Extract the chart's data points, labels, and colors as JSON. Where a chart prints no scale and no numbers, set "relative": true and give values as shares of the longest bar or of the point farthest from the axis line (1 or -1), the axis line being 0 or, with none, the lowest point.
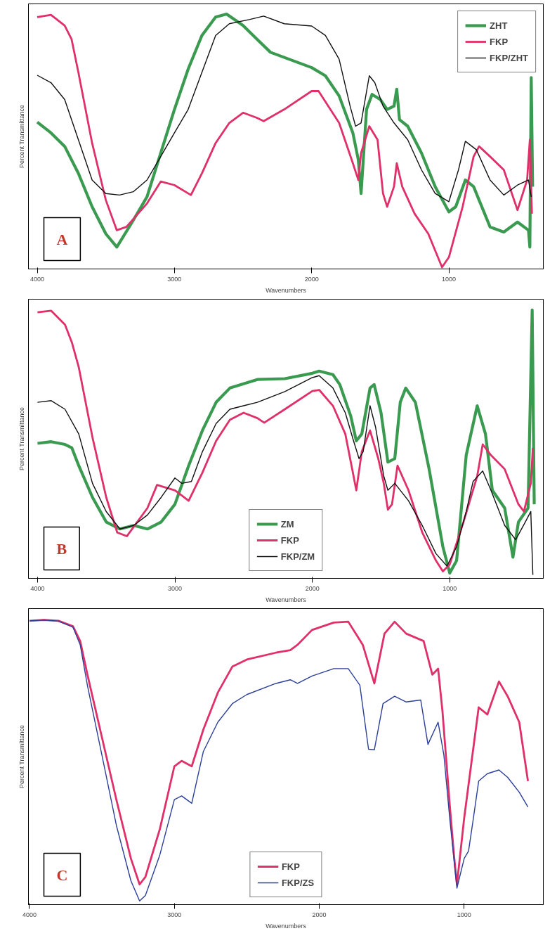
{
  "chart_data": [
    {
      "type": "line",
      "relative": true,
      "xlabel": "Wavenumbers",
      "ylabel": "Percent Transmittance",
      "xlim": [
        4064,
        312
      ],
      "xticks": [
        4000,
        3000,
        2000,
        1000
      ],
      "tick_labels": "x",
      "grid": false,
      "legend": "top right",
      "line_style": "solid",
      "marker": "none",
      "annotations": [
        "A"
      ],
      "series": [
        {
          "name": "ZHT",
          "color": "#3a9a50",
          "x": [
            4000,
            3900,
            3800,
            3700,
            3600,
            3500,
            3420,
            3300,
            3200,
            3100,
            3000,
            2900,
            2800,
            2700,
            2620,
            2500,
            2400,
            2300,
            2200,
            2000,
            1900,
            1800,
            1700,
            1660,
            1640,
            1600,
            1560,
            1500,
            1450,
            1400,
            1380,
            1360,
            1300,
            1200,
            1100,
            1000,
            950,
            880,
            820,
            700,
            600,
            500,
            420,
            410,
            400,
            390
          ],
          "values": [
            0.576,
            0.534,
            0.481,
            0.375,
            0.244,
            0.138,
            0.086,
            0.191,
            0.283,
            0.455,
            0.626,
            0.784,
            0.916,
            0.988,
            1.0,
            0.955,
            0.902,
            0.85,
            0.83,
            0.79,
            0.758,
            0.679,
            0.534,
            0.428,
            0.296,
            0.626,
            0.685,
            0.665,
            0.626,
            0.639,
            0.705,
            0.586,
            0.56,
            0.455,
            0.323,
            0.224,
            0.244,
            0.349,
            0.323,
            0.165,
            0.145,
            0.184,
            0.152,
            0.086,
            0.751,
            0.323
          ]
        },
        {
          "name": "FKP",
          "color": "#e0306a",
          "x": [
            4000,
            3900,
            3800,
            3750,
            3700,
            3600,
            3500,
            3420,
            3350,
            3200,
            3100,
            3000,
            2880,
            2800,
            2700,
            2600,
            2500,
            2400,
            2350,
            2200,
            2000,
            1950,
            1800,
            1700,
            1660,
            1640,
            1580,
            1520,
            1480,
            1450,
            1400,
            1380,
            1340,
            1250,
            1150,
            1080,
            1050,
            1000,
            900,
            820,
            780,
            700,
            600,
            500,
            430,
            410,
            395
          ],
          "values": [
            0.988,
            0.997,
            0.955,
            0.902,
            0.771,
            0.494,
            0.27,
            0.152,
            0.165,
            0.257,
            0.343,
            0.329,
            0.29,
            0.375,
            0.494,
            0.573,
            0.613,
            0.593,
            0.58,
            0.626,
            0.698,
            0.698,
            0.573,
            0.415,
            0.349,
            0.455,
            0.56,
            0.507,
            0.296,
            0.244,
            0.323,
            0.415,
            0.323,
            0.217,
            0.138,
            0.046,
            0.007,
            0.046,
            0.244,
            0.441,
            0.481,
            0.441,
            0.389,
            0.231,
            0.349,
            0.507,
            0.217
          ]
        },
        {
          "name": "FKP/ZHT",
          "color": "#111111",
          "x": [
            4000,
            3900,
            3800,
            3700,
            3600,
            3500,
            3400,
            3300,
            3200,
            3100,
            3000,
            2900,
            2800,
            2700,
            2600,
            2450,
            2350,
            2200,
            2000,
            1900,
            1800,
            1720,
            1680,
            1640,
            1580,
            1540,
            1480,
            1400,
            1300,
            1200,
            1100,
            1000,
            930,
            880,
            800,
            700,
            600,
            500,
            420,
            400
          ],
          "values": [
            0.76,
            0.731,
            0.665,
            0.507,
            0.349,
            0.296,
            0.29,
            0.303,
            0.349,
            0.441,
            0.534,
            0.626,
            0.771,
            0.916,
            0.962,
            0.979,
            0.992,
            0.962,
            0.953,
            0.916,
            0.823,
            0.639,
            0.56,
            0.573,
            0.758,
            0.731,
            0.639,
            0.573,
            0.507,
            0.389,
            0.296,
            0.264,
            0.389,
            0.501,
            0.468,
            0.349,
            0.29,
            0.329,
            0.349,
            0.283
          ]
        }
      ]
    },
    {
      "type": "line",
      "relative": true,
      "xlabel": "Wavenumbers",
      "ylabel": "Percent Transmittance",
      "xlim": [
        4066,
        319
      ],
      "xticks": [
        4000,
        3000,
        2000,
        1000
      ],
      "tick_labels": "x",
      "grid": false,
      "legend": "bottom",
      "line_style": "solid",
      "marker": "none",
      "annotations": [
        "B"
      ],
      "series": [
        {
          "name": "ZM",
          "color": "#3a9a50",
          "x": [
            4000,
            3900,
            3800,
            3750,
            3700,
            3600,
            3500,
            3400,
            3300,
            3200,
            3100,
            3000,
            2900,
            2800,
            2700,
            2600,
            2400,
            2200,
            2000,
            1950,
            1850,
            1800,
            1720,
            1680,
            1640,
            1580,
            1550,
            1500,
            1450,
            1400,
            1360,
            1320,
            1250,
            1150,
            1050,
            1000,
            950,
            880,
            800,
            740,
            690,
            600,
            540,
            500,
            430,
            400,
            385
          ],
          "values": [
            0.503,
            0.509,
            0.499,
            0.486,
            0.42,
            0.302,
            0.21,
            0.184,
            0.197,
            0.184,
            0.21,
            0.276,
            0.42,
            0.551,
            0.656,
            0.709,
            0.741,
            0.744,
            0.764,
            0.772,
            0.759,
            0.722,
            0.604,
            0.512,
            0.538,
            0.709,
            0.722,
            0.617,
            0.433,
            0.446,
            0.656,
            0.709,
            0.656,
            0.407,
            0.118,
            0.02,
            0.066,
            0.459,
            0.643,
            0.538,
            0.328,
            0.262,
            0.079,
            0.21,
            0.262,
            1.0,
            0.276
          ]
        },
        {
          "name": "FKP",
          "color": "#e0306a",
          "x": [
            4000,
            3900,
            3800,
            3750,
            3700,
            3600,
            3500,
            3420,
            3350,
            3200,
            3130,
            3000,
            2900,
            2800,
            2700,
            2600,
            2500,
            2400,
            2350,
            2200,
            2000,
            1950,
            1850,
            1760,
            1700,
            1680,
            1640,
            1580,
            1520,
            1480,
            1450,
            1420,
            1380,
            1300,
            1200,
            1100,
            1050,
            1000,
            900,
            800,
            760,
            700,
            600,
            500,
            460,
            410,
            395
          ],
          "values": [
            0.991,
            0.997,
            0.945,
            0.879,
            0.787,
            0.525,
            0.302,
            0.171,
            0.157,
            0.262,
            0.348,
            0.328,
            0.289,
            0.394,
            0.512,
            0.591,
            0.617,
            0.597,
            0.58,
            0.63,
            0.698,
            0.702,
            0.643,
            0.538,
            0.381,
            0.328,
            0.472,
            0.551,
            0.446,
            0.354,
            0.256,
            0.276,
            0.42,
            0.328,
            0.171,
            0.066,
            0.026,
            0.052,
            0.21,
            0.381,
            0.499,
            0.459,
            0.407,
            0.276,
            0.249,
            0.354,
            0.486
          ]
        },
        {
          "name": "FKP/ZM",
          "color": "#111111",
          "x": [
            4000,
            3900,
            3800,
            3700,
            3600,
            3500,
            3400,
            3300,
            3200,
            3100,
            3000,
            2950,
            2880,
            2800,
            2700,
            2600,
            2500,
            2400,
            2200,
            2000,
            1950,
            1850,
            1760,
            1700,
            1660,
            1630,
            1580,
            1540,
            1480,
            1450,
            1400,
            1300,
            1200,
            1100,
            1020,
            950,
            880,
            830,
            760,
            700,
            600,
            520,
            450,
            410,
            395
          ],
          "values": [
            0.656,
            0.662,
            0.63,
            0.538,
            0.354,
            0.249,
            0.184,
            0.197,
            0.236,
            0.302,
            0.374,
            0.354,
            0.361,
            0.472,
            0.577,
            0.63,
            0.643,
            0.656,
            0.696,
            0.748,
            0.755,
            0.709,
            0.617,
            0.512,
            0.446,
            0.472,
            0.643,
            0.564,
            0.381,
            0.328,
            0.354,
            0.289,
            0.197,
            0.092,
            0.046,
            0.118,
            0.249,
            0.361,
            0.4,
            0.328,
            0.197,
            0.144,
            0.21,
            0.249,
            0.013
          ]
        }
      ]
    },
    {
      "type": "line",
      "relative": true,
      "xlabel": "Wavenumbers",
      "ylabel": "Percent Transmittance",
      "xlim": [
        4007,
        454
      ],
      "xticks": [
        4000,
        3000,
        2000,
        1000
      ],
      "tick_labels": "x",
      "grid": false,
      "legend": "bottom",
      "line_style": "solid",
      "marker": "none",
      "annotations": [
        "C"
      ],
      "series": [
        {
          "name": "FKP",
          "color": "#e0306a",
          "x": [
            4000,
            3900,
            3800,
            3700,
            3650,
            3600,
            3500,
            3400,
            3300,
            3240,
            3200,
            3100,
            3000,
            2950,
            2880,
            2800,
            2700,
            2600,
            2500,
            2300,
            2200,
            2150,
            2050,
            1900,
            1800,
            1700,
            1620,
            1550,
            1480,
            1400,
            1340,
            1280,
            1220,
            1180,
            1150,
            1100,
            1070,
            1050,
            1000,
            960,
            900,
            840,
            760,
            700,
            620,
            560
          ],
          "values": [
            0.997,
            1.0,
            0.997,
            0.978,
            0.926,
            0.808,
            0.588,
            0.368,
            0.162,
            0.071,
            0.097,
            0.266,
            0.486,
            0.505,
            0.486,
            0.615,
            0.745,
            0.836,
            0.861,
            0.885,
            0.894,
            0.913,
            0.965,
            0.991,
            0.994,
            0.913,
            0.777,
            0.952,
            0.994,
            0.952,
            0.939,
            0.926,
            0.808,
            0.829,
            0.68,
            0.352,
            0.171,
            0.071,
            0.304,
            0.46,
            0.693,
            0.668,
            0.784,
            0.732,
            0.641,
            0.434
          ]
        },
        {
          "name": "FKP/ZS",
          "color": "#2b3f9a",
          "x": [
            4000,
            3900,
            3800,
            3700,
            3650,
            3600,
            3500,
            3400,
            3300,
            3240,
            3200,
            3100,
            3000,
            2950,
            2880,
            2800,
            2700,
            2600,
            2500,
            2300,
            2200,
            2150,
            2050,
            1900,
            1800,
            1720,
            1660,
            1620,
            1560,
            1480,
            1400,
            1300,
            1250,
            1180,
            1140,
            1100,
            1050,
            1000,
            970,
            940,
            900,
            840,
            760,
            700,
            620,
            560
          ],
          "values": [
            0.997,
            1.0,
            0.996,
            0.975,
            0.913,
            0.77,
            0.525,
            0.278,
            0.084,
            0.013,
            0.032,
            0.175,
            0.369,
            0.382,
            0.356,
            0.538,
            0.641,
            0.706,
            0.738,
            0.777,
            0.79,
            0.777,
            0.803,
            0.829,
            0.829,
            0.771,
            0.546,
            0.544,
            0.706,
            0.732,
            0.712,
            0.719,
            0.563,
            0.641,
            0.525,
            0.304,
            0.058,
            0.162,
            0.188,
            0.291,
            0.434,
            0.46,
            0.473,
            0.447,
            0.395,
            0.343
          ]
        }
      ]
    }
  ]
}
